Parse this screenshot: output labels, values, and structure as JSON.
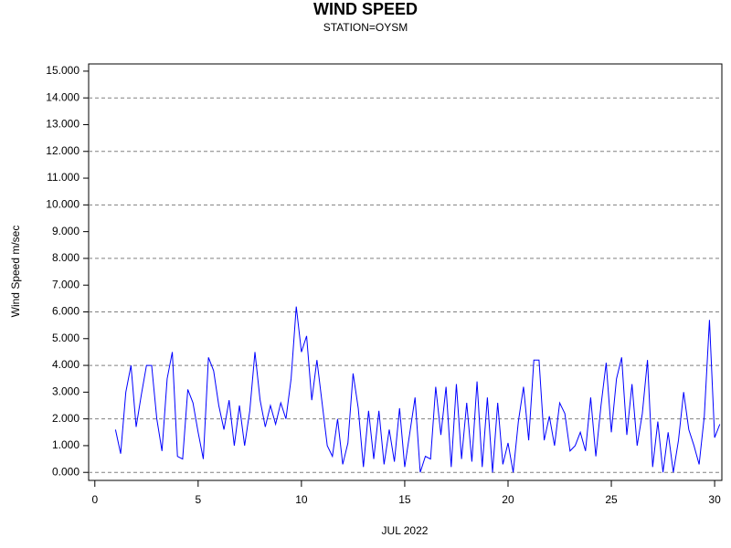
{
  "chart_data": {
    "type": "line",
    "title": "WIND SPEED",
    "subtitle": "STATION=OYSM",
    "x_label": "JUL 2022",
    "y_label": "Wind Speed m/sec",
    "xlim": [
      -0.3,
      30.35
    ],
    "xticks": [
      0,
      5,
      10,
      15,
      20,
      25,
      30
    ],
    "ylim": [
      -0.3,
      15.27
    ],
    "yticks": [
      {
        "value": 0,
        "label": "0.000"
      },
      {
        "value": 1,
        "label": "1.000"
      },
      {
        "value": 2,
        "label": "2.000"
      },
      {
        "value": 3,
        "label": "3.000"
      },
      {
        "value": 4,
        "label": "4.000"
      },
      {
        "value": 5,
        "label": "5.000"
      },
      {
        "value": 6,
        "label": "6.000"
      },
      {
        "value": 7,
        "label": "7.000"
      },
      {
        "value": 8,
        "label": "8.000"
      },
      {
        "value": 9,
        "label": "9.000"
      },
      {
        "value": 10,
        "label": "10.000"
      },
      {
        "value": 11,
        "label": "11.000"
      },
      {
        "value": 12,
        "label": "12.000"
      },
      {
        "value": 13,
        "label": "13.000"
      },
      {
        "value": 14,
        "label": "14.000"
      },
      {
        "value": 15,
        "label": "15.000"
      }
    ],
    "ygrid": [
      0,
      2,
      4,
      6,
      8,
      10,
      12,
      14
    ],
    "x": [
      1,
      1.25,
      1.5,
      1.75,
      2,
      2.25,
      2.5,
      2.75,
      3,
      3.25,
      3.5,
      3.75,
      4,
      4.25,
      4.5,
      4.75,
      5,
      5.25,
      5.5,
      5.75,
      6,
      6.25,
      6.5,
      6.75,
      7,
      7.25,
      7.5,
      7.75,
      8,
      8.25,
      8.5,
      8.75,
      9,
      9.25,
      9.5,
      9.75,
      10,
      10.25,
      10.5,
      10.75,
      11,
      11.25,
      11.5,
      11.75,
      12,
      12.25,
      12.5,
      12.75,
      13,
      13.25,
      13.5,
      13.75,
      14,
      14.25,
      14.5,
      14.75,
      15,
      15.25,
      15.5,
      15.75,
      16,
      16.25,
      16.5,
      16.75,
      17,
      17.25,
      17.5,
      17.75,
      18,
      18.25,
      18.5,
      18.75,
      19,
      19.25,
      19.5,
      19.75,
      20,
      20.25,
      20.5,
      20.75,
      21,
      21.25,
      21.5,
      21.75,
      22,
      22.25,
      22.5,
      22.75,
      23,
      23.25,
      23.5,
      23.75,
      24,
      24.25,
      24.5,
      24.75,
      25,
      25.25,
      25.5,
      25.75,
      26,
      26.25,
      26.5,
      26.75,
      27,
      27.25,
      27.5,
      27.75,
      28,
      28.25,
      28.5,
      28.75,
      29,
      29.25,
      29.5,
      29.75,
      30,
      30.25
    ],
    "series": [
      {
        "color": "#0000ff",
        "values": [
          1.6,
          0.7,
          3.0,
          4.0,
          1.7,
          2.9,
          4.0,
          4.0,
          2.0,
          0.8,
          3.5,
          4.5,
          0.6,
          0.5,
          3.1,
          2.6,
          1.5,
          0.5,
          4.3,
          3.8,
          2.5,
          1.6,
          2.7,
          1.0,
          2.5,
          1.0,
          2.3,
          4.5,
          2.7,
          1.7,
          2.5,
          1.8,
          2.6,
          2.0,
          3.5,
          6.2,
          4.5,
          5.1,
          2.7,
          4.2,
          2.6,
          1.0,
          0.6,
          2.0,
          0.3,
          1.1,
          3.7,
          2.4,
          0.2,
          2.3,
          0.5,
          2.3,
          0.3,
          1.6,
          0.4,
          2.4,
          0.2,
          1.5,
          2.8,
          0.0,
          0.6,
          0.5,
          3.2,
          1.4,
          3.2,
          0.2,
          3.3,
          0.5,
          2.6,
          0.4,
          3.4,
          0.2,
          2.8,
          0.0,
          2.6,
          0.3,
          1.1,
          0.0,
          1.9,
          3.2,
          1.2,
          4.2,
          4.2,
          1.2,
          2.1,
          1.0,
          2.6,
          2.2,
          0.8,
          1.0,
          1.5,
          0.8,
          2.8,
          0.6,
          2.5,
          4.1,
          1.5,
          3.5,
          4.3,
          1.4,
          3.3,
          1.0,
          2.2,
          4.2,
          0.2,
          1.9,
          0.0,
          1.5,
          0.0,
          1.2,
          3.0,
          1.6,
          1.0,
          0.3,
          2.1,
          5.7,
          1.3,
          1.8
        ]
      }
    ]
  }
}
